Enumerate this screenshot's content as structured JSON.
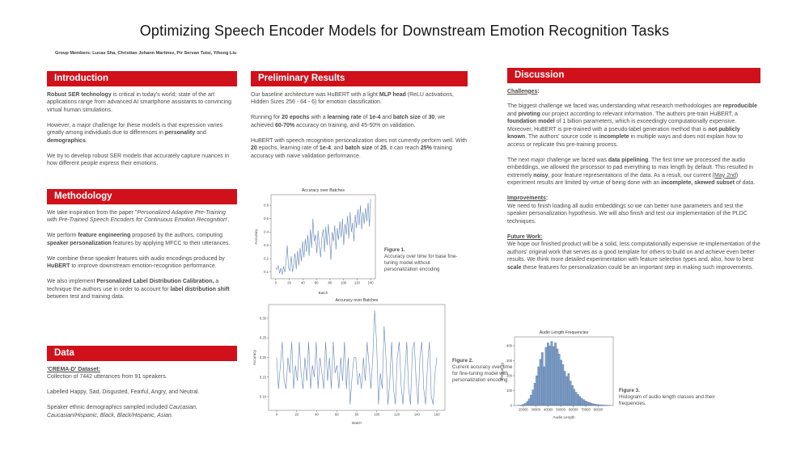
{
  "poster": {
    "title": "Optimizing Speech Encoder Models for Downstream Emotion Recognition Tasks",
    "authors": "Group Members: Lucas Sha, Christian Johann Martinez, Pir Servan Tutsi, Yihong Liu"
  },
  "theme": {
    "accent_red": "#d0111b",
    "line_blue": "#6385b8",
    "hist_fill": "#7d9cc4",
    "hist_edge": "#4a6f9e"
  },
  "sections": {
    "introduction": {
      "heading": "Introduction",
      "paragraphs": [
        "**Robust SER technology** is critical in today's world; state of the art applications range  from advanced  AI smartphone assistants to convincing virtual human simulations.",
        "However,  a major challenge for these models is that expression varies greatly among individuals due to differences in **personality** and **demographics**.",
        "We try  to develop robust SER  models that accurately capture nuances in how different people express their emotions."
      ]
    },
    "methodology": {
      "heading": "Methodology",
      "paragraphs": [
        "We take inspiration from the paper ''*Personalized Adaptive Pre-Training with Pre-Trained Speech Encoders for Continuous Emotion Recognition*'.",
        "We perform **feature engineering** proposed by the authors, computing  **speaker personalization** features by applying MFCC to their utterances.",
        "We combine these speaker features with audio encodings produced by **HuBERT** to improve downstream emotion-recognition performance.",
        "We also implement **Personalized Label Distribution Calibration,** a technique the authors use in order to account for **label distribution shift** between test and training data."
      ]
    },
    "data": {
      "heading": "Data",
      "paragraphs": [
        "**__'CREMA-D' Dataset:__**\nCollection of 7442 utterances from 91 speakers.",
        "Labelled  Happy, Sad, Disgusted, Fearful, Angry, and Neutral.",
        "Speaker ethnic demographics  sampled  included *Caucasian, Caucasian/Hispanic, Black, Black/Hispanic, Asian.*"
      ]
    },
    "results": {
      "heading": "Preliminary Results",
      "paragraphs": [
        "Our baseline architecture was HuBERT with a light **MLP head** (ReLU activations, Hidden Sizes 256 - 64 - 6) for emotion classification.",
        "Running for **20 epochs** with a **learning rate** of **1e-4** and **batch size** of **30**, we achieved **60-70%** accuracy on training, and 45-50% on validation.",
        "HuBERT with speech recognition personalization does not currently perform well. With **20** epochs, learning rate of **1e-4**, and **batch size** of **25**, it can reach **25%** training accuracy with  naive validation performance."
      ]
    },
    "discussion": {
      "heading": "Discussion",
      "paragraphs": [
        "**__Challenges__:**",
        "The biggest challenge we faced was understanding what research methodologies  are **reproducible** and **pivoting** our project according to relevant information. The authors pre-train HuBERT, a **foundation model** of 1 billion parameters, which is exceedingly computationally expensive. Moreover, HuBERT is pre-trained with a pseudo-label generation method that is **not publicly known**. The authors' source code is **incomplete** in multiple ways  and does not explain how to access or replicate this pre-training process.",
        "The next  major challenge we faced was **data pipelining**. The first time we processed  the audio embeddings, we allowed the processor to pad everything to max length by default. This resulted in extremely **noisy**, poor feature representations of the data. As a result, our current __(May 2nd)__  experiment results are limited by virtue of being done  with an **incomplete, skewed subset** of data.",
        "**__Improvements__:**\nWe need to finish loading all audio embeddings  so we can better tune parameters and test the speaker personalization hypothesis. We will also finish and test our implementation of the PLDC techniques.",
        "**__Future Work:__**\nWe hope our finished product will be a solid, less computationally expensive re-implementation of the authors' original work that serves as a good template for others to build on and achieve even better results. We think more detailed experimentation with feature selection types and, also, how to best **scale** these features for personalization could be an important step in making such improvements."
      ]
    }
  },
  "figures": {
    "fig1": {
      "label": "Figure 1.",
      "caption": "Accuracy over time for base fine-tuning model without personalization encoding"
    },
    "fig2": {
      "label": "Figure 2.",
      "caption": "Current accuracy over time for fine-tuning model with personalization encoding"
    },
    "fig3": {
      "label": "Figure 3.",
      "caption": "Histogram of audio length classes and their frequencies."
    }
  },
  "chart_data": [
    {
      "id": "figure-1",
      "type": "line",
      "title": "Accuracy over Batches",
      "xlabel": "Batch",
      "ylabel": "Accuracy",
      "x_max": 140,
      "xlim": [
        -7,
        147
      ],
      "ylim": [
        0.05,
        0.68
      ],
      "xticks": [
        0,
        20,
        40,
        60,
        80,
        100,
        120,
        140
      ],
      "xtick_labels": [
        "0",
        "20",
        "40",
        "60",
        "80",
        "100",
        "120",
        "140"
      ],
      "yticks": [
        0.1,
        0.2,
        0.3,
        0.4,
        0.5,
        0.6
      ],
      "ytick_labels": [
        "0.1",
        "0.2",
        "0.3",
        "0.4",
        "0.5",
        "0.6"
      ],
      "color": "#6385b8",
      "values": [
        0.13,
        0.12,
        0.15,
        0.09,
        0.13,
        0.08,
        0.14,
        0.1,
        0.17,
        0.3,
        0.13,
        0.11,
        0.22,
        0.1,
        0.16,
        0.24,
        0.12,
        0.26,
        0.15,
        0.28,
        0.18,
        0.33,
        0.21,
        0.35,
        0.25,
        0.38,
        0.22,
        0.42,
        0.28,
        0.5,
        0.33,
        0.38,
        0.24,
        0.41,
        0.3,
        0.21,
        0.36,
        0.42,
        0.25,
        0.44,
        0.3,
        0.46,
        0.35,
        0.19,
        0.4,
        0.33,
        0.45,
        0.27,
        0.43,
        0.34,
        0.48,
        0.36,
        0.5,
        0.3,
        0.46,
        0.38,
        0.52,
        0.35,
        0.55,
        0.4,
        0.47,
        0.33,
        0.53,
        0.43,
        0.57,
        0.45,
        0.6,
        0.42,
        0.55,
        0.46,
        0.58,
        0.48,
        0.62,
        0.44,
        0.65
      ]
    },
    {
      "id": "figure-2",
      "type": "line",
      "title": "Accuracy over Batches",
      "xlabel": "Batch",
      "ylabel": "Accuracy",
      "x_max": 160,
      "xlim": [
        -8,
        168
      ],
      "ylim": [
        0.065,
        0.335
      ],
      "xticks": [
        0,
        20,
        40,
        60,
        80,
        100,
        120,
        140,
        160
      ],
      "xtick_labels": [
        "0",
        "20",
        "40",
        "60",
        "80",
        "100",
        "120",
        "140",
        "160"
      ],
      "yticks": [
        0.1,
        0.15,
        0.2,
        0.25,
        0.3
      ],
      "ytick_labels": [
        "0.10",
        "0.15",
        "0.20",
        "0.25",
        "0.30"
      ],
      "color": "#6385b8",
      "values": [
        0.2,
        0.12,
        0.18,
        0.24,
        0.14,
        0.12,
        0.2,
        0.16,
        0.24,
        0.12,
        0.18,
        0.14,
        0.24,
        0.16,
        0.12,
        0.2,
        0.14,
        0.24,
        0.12,
        0.18,
        0.15,
        0.24,
        0.12,
        0.2,
        0.16,
        0.12,
        0.24,
        0.14,
        0.2,
        0.12,
        0.24,
        0.16,
        0.18,
        0.12,
        0.2,
        0.14,
        0.24,
        0.12,
        0.2,
        0.08,
        0.15,
        0.2,
        0.2,
        0.13,
        0.16,
        0.12,
        0.2,
        0.14,
        0.24,
        0.18,
        0.12,
        0.2,
        0.32,
        0.24,
        0.08,
        0.16,
        0.12,
        0.28,
        0.2,
        0.08,
        0.14,
        0.24,
        0.12,
        0.08,
        0.2,
        0.24,
        0.13,
        0.08,
        0.16,
        0.24,
        0.12,
        0.08,
        0.22,
        0.24,
        0.14,
        0.08,
        0.2,
        0.24,
        0.12,
        0.08,
        0.18,
        0.24,
        0.1,
        0.08,
        0.16,
        0.2
      ]
    },
    {
      "id": "figure-3",
      "type": "hist",
      "title": "Audio Length Frequencies",
      "xlabel": "Audio Length",
      "ylabel": "Frequency",
      "bin_start": 15000,
      "bin_width": 1500,
      "xlim": [
        13000,
        92000
      ],
      "ylim": [
        0,
        460
      ],
      "xticks": [
        20000,
        30000,
        40000,
        50000,
        60000,
        70000,
        80000
      ],
      "xtick_labels": [
        "20000",
        "30000",
        "40000",
        "50000",
        "60000",
        "70000",
        "80000"
      ],
      "yticks": [
        0,
        100,
        200,
        300,
        400
      ],
      "ytick_labels": [
        "0",
        "100",
        "200",
        "300",
        "400"
      ],
      "fill": "#7d9cc4",
      "edge": "#4a6f9e",
      "values": [
        1,
        2,
        4,
        8,
        15,
        28,
        45,
        70,
        105,
        150,
        200,
        260,
        310,
        355,
        260,
        390,
        420,
        400,
        430,
        395,
        420,
        380,
        345,
        305,
        275,
        230,
        195,
        215,
        165,
        135,
        110,
        90,
        75,
        62,
        50,
        40,
        32,
        26,
        21,
        17,
        13,
        10,
        8,
        6,
        5,
        4,
        3,
        3,
        2,
        2
      ]
    }
  ]
}
